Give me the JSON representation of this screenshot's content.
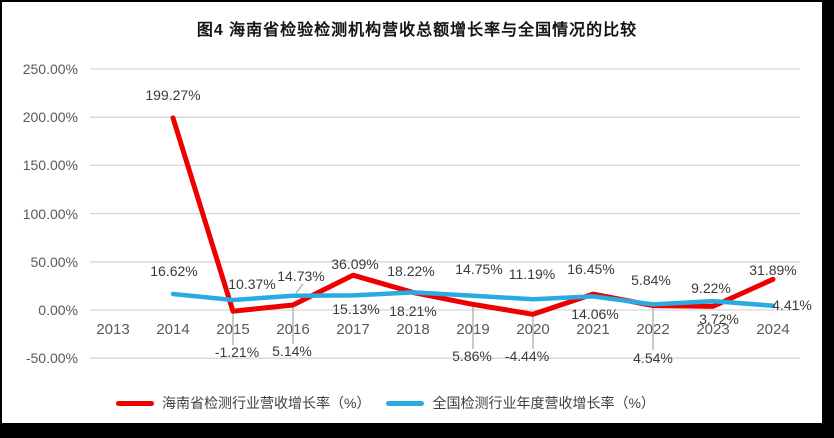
{
  "figure": {
    "title": "图4 海南省检验检测机构营收总额增长率与全国情况的比较"
  },
  "chart_data": {
    "type": "line",
    "title": "图4 海南省检验检测机构营收总额增长率与全国情况的比较",
    "categories": [
      "2013",
      "2014",
      "2015",
      "2016",
      "2017",
      "2018",
      "2019",
      "2020",
      "2021",
      "2022",
      "2023",
      "2024"
    ],
    "series": [
      {
        "name": "海南省检测行业营收增长率（%）",
        "color": "#ee0000",
        "values": [
          null,
          199.27,
          -1.21,
          5.14,
          36.09,
          18.21,
          5.86,
          -4.44,
          16.45,
          4.54,
          3.72,
          31.89
        ]
      },
      {
        "name": "全国检测行业年度营收增长率（%）",
        "color": "#29abe2",
        "values": [
          null,
          16.62,
          10.37,
          14.73,
          15.13,
          18.22,
          14.75,
          11.19,
          14.06,
          5.84,
          9.22,
          4.41
        ]
      }
    ],
    "y_ticks": [
      "250.00%",
      "200.00%",
      "150.00%",
      "100.00%",
      "50.00%",
      "0.00%",
      "-50.00%"
    ],
    "ylim": [
      -50,
      250
    ],
    "y_tick_step": 50,
    "grid": true,
    "gridline_color": "#d6d6d6",
    "label_format": "0.00%",
    "legend_position": "bottom"
  }
}
